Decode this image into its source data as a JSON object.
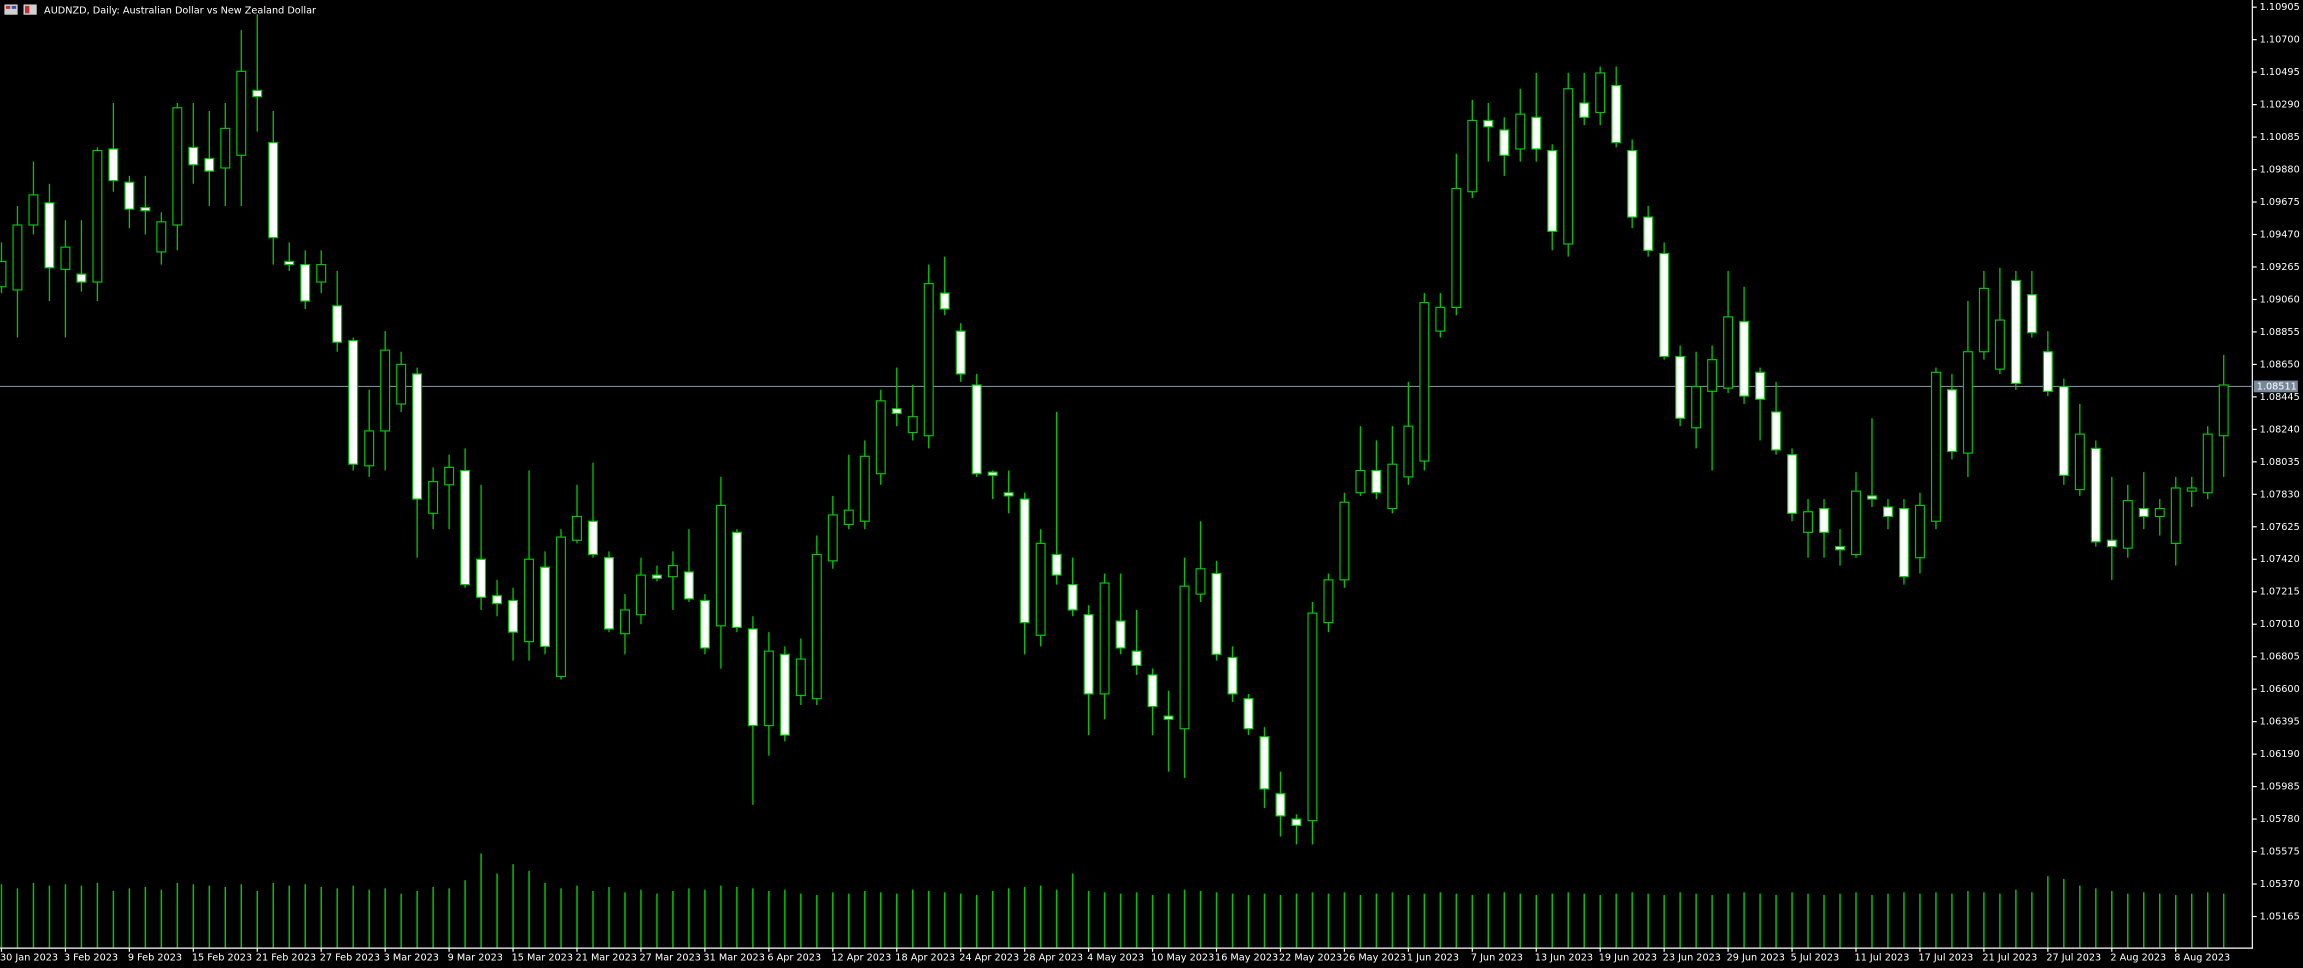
{
  "chart_data": {
    "type": "candlestick",
    "title": "AUDNZD, Daily:  Australian Dollar vs New Zealand Dollar",
    "categories": [
      "30 Jan 2023",
      null,
      null,
      null,
      "3 Feb 2023",
      null,
      null,
      null,
      "9 Feb 2023",
      null,
      null,
      null,
      "15 Feb 2023",
      null,
      null,
      null,
      "21 Feb 2023",
      null,
      null,
      null,
      "27 Feb 2023",
      null,
      null,
      null,
      "3 Mar 2023",
      null,
      null,
      null,
      "9 Mar 2023",
      null,
      null,
      null,
      "15 Mar 2023",
      null,
      null,
      null,
      "21 Mar 2023",
      null,
      null,
      null,
      "27 Mar 2023",
      null,
      null,
      null,
      "31 Mar 2023",
      null,
      null,
      null,
      "6 Apr 2023",
      null,
      null,
      null,
      "12 Apr 2023",
      null,
      null,
      null,
      "18 Apr 2023",
      null,
      null,
      null,
      "24 Apr 2023",
      null,
      null,
      null,
      "28 Apr 2023",
      null,
      null,
      null,
      "4 May 2023",
      null,
      null,
      null,
      "10 May 2023",
      null,
      null,
      null,
      "16 May 2023",
      null,
      null,
      null,
      "22 May 2023",
      null,
      null,
      null,
      "26 May 2023",
      null,
      null,
      null,
      "1 Jun 2023",
      null,
      null,
      null,
      "7 Jun 2023",
      null,
      null,
      null,
      "13 Jun 2023",
      null,
      null,
      null,
      "19 Jun 2023",
      null,
      null,
      null,
      "23 Jun 2023",
      null,
      null,
      null,
      "29 Jun 2023",
      null,
      null,
      null,
      "5 Jul 2023",
      null,
      null,
      null,
      "11 Jul 2023",
      null,
      null,
      null,
      "17 Jul 2023",
      null,
      null,
      null,
      "21 Jul 2023",
      null,
      null,
      null,
      "27 Jul 2023",
      null,
      null,
      null,
      "2 Aug 2023",
      null,
      null,
      null,
      "8 Aug 2023",
      null,
      null,
      null
    ],
    "open": [
      1.0914,
      1.0912,
      1.0953,
      1.0967,
      1.0925,
      1.0922,
      1.0917,
      1.1001,
      1.098,
      1.0964,
      1.0936,
      1.0953,
      1.1002,
      1.0995,
      1.0989,
      1.0997,
      1.1038,
      1.1005,
      1.093,
      1.0928,
      1.0917,
      1.0902,
      1.088,
      1.0801,
      1.0823,
      1.084,
      1.0859,
      1.0771,
      1.0789,
      1.0798,
      1.0742,
      1.0719,
      1.0716,
      1.069,
      1.0737,
      1.0668,
      1.0754,
      1.0766,
      1.0743,
      1.0695,
      1.0707,
      1.0732,
      1.0731,
      1.0734,
      1.0716,
      1.07,
      1.0759,
      1.0698,
      1.0637,
      1.0682,
      1.0656,
      1.0654,
      1.0741,
      1.0764,
      1.0766,
      1.0796,
      1.0837,
      1.0822,
      1.082,
      1.091,
      1.0886,
      1.0852,
      1.0797,
      1.0784,
      1.078,
      1.0694,
      1.0745,
      1.0726,
      1.0707,
      1.0657,
      1.0703,
      1.0684,
      1.0669,
      1.0643,
      1.0635,
      1.072,
      1.0733,
      1.068,
      1.0654,
      1.063,
      1.0594,
      1.0578,
      1.0577,
      1.0702,
      1.0729,
      1.0784,
      1.0798,
      1.0774,
      1.0794,
      1.0804,
      1.0886,
      1.0901,
      1.0974,
      1.1019,
      1.1013,
      1.1001,
      1.1021,
      1.1,
      1.0941,
      1.103,
      1.1024,
      1.1041,
      1.1,
      1.0958,
      1.0935,
      1.087,
      1.0825,
      1.0848,
      1.085,
      1.0892,
      1.086,
      1.0835,
      1.0808,
      1.0759,
      1.0774,
      1.075,
      1.0745,
      1.0782,
      1.0775,
      1.0774,
      1.0743,
      1.0766,
      1.0849,
      1.0809,
      1.0873,
      1.0862,
      1.0918,
      1.0909,
      1.0873,
      1.0851,
      1.0786,
      1.0812,
      1.0754,
      1.0749,
      1.0774,
      1.0769,
      1.0752,
      1.0785,
      1.0784,
      1.082
    ],
    "high": [
      1.0942,
      1.0965,
      1.0993,
      1.0979,
      1.0956,
      1.0956,
      1.1002,
      1.103,
      1.0984,
      1.0984,
      1.0961,
      1.103,
      1.103,
      1.1025,
      1.103,
      1.1076,
      1.1086,
      1.1025,
      1.0942,
      1.0937,
      1.0937,
      1.0924,
      1.0882,
      1.0849,
      1.0886,
      1.0873,
      1.0863,
      1.08,
      1.0808,
      1.0812,
      1.0789,
      1.0729,
      1.0724,
      1.0798,
      1.0747,
      1.0761,
      1.0789,
      1.0803,
      1.0747,
      1.072,
      1.0743,
      1.0738,
      1.0747,
      1.0761,
      1.072,
      1.0794,
      1.0761,
      1.0706,
      1.0696,
      1.0687,
      1.0692,
      1.0757,
      1.0782,
      1.0808,
      1.0817,
      1.0849,
      1.0863,
      1.0852,
      1.0928,
      1.0933,
      1.0891,
      1.0859,
      1.0798,
      1.0798,
      1.0784,
      1.0761,
      1.0835,
      1.0743,
      1.0713,
      1.0733,
      1.0733,
      1.071,
      1.0673,
      1.0659,
      1.0743,
      1.0766,
      1.0741,
      1.0687,
      1.0657,
      1.0636,
      1.0608,
      1.0581,
      1.0715,
      1.0733,
      1.0784,
      1.0826,
      1.0817,
      1.0826,
      1.0854,
      1.091,
      1.091,
      1.0998,
      1.1032,
      1.103,
      1.1021,
      1.1039,
      1.1049,
      1.1004,
      1.1049,
      1.1049,
      1.1053,
      1.1053,
      1.1007,
      1.0965,
      1.0942,
      1.0877,
      1.0873,
      1.0877,
      1.0924,
      1.0914,
      1.0863,
      1.0854,
      1.0812,
      1.078,
      1.078,
      1.0761,
      1.0797,
      1.0831,
      1.078,
      1.078,
      1.0784,
      1.0863,
      1.0859,
      1.0905,
      1.0924,
      1.0926,
      1.0924,
      1.0924,
      1.0886,
      1.0856,
      1.084,
      1.0817,
      1.0794,
      1.0789,
      1.0797,
      1.078,
      1.0794,
      1.0794,
      1.0826,
      1.0871
    ],
    "low": [
      1.091,
      1.0882,
      1.0947,
      1.0905,
      1.0882,
      1.0911,
      1.0905,
      1.0974,
      1.0951,
      1.0947,
      1.0928,
      1.0937,
      1.0979,
      1.0965,
      1.0965,
      1.0965,
      1.1012,
      1.0928,
      1.0924,
      1.09,
      1.091,
      1.0873,
      1.0798,
      1.0794,
      1.0798,
      1.0835,
      1.0743,
      1.0761,
      1.0761,
      1.0724,
      1.071,
      1.0706,
      1.0678,
      1.0678,
      1.0682,
      1.0666,
      1.0752,
      1.0743,
      1.0696,
      1.0682,
      1.0701,
      1.0728,
      1.071,
      1.0715,
      1.0682,
      1.0673,
      1.0696,
      1.0587,
      1.0618,
      1.0627,
      1.065,
      1.065,
      1.0736,
      1.0761,
      1.0761,
      1.0789,
      1.0826,
      1.0817,
      1.0812,
      1.0896,
      1.0854,
      1.0794,
      1.078,
      1.0771,
      1.0682,
      1.0687,
      1.0726,
      1.0706,
      1.0631,
      1.0641,
      1.0682,
      1.0669,
      1.0631,
      1.0608,
      1.0604,
      1.0715,
      1.0678,
      1.0652,
      1.0631,
      1.0585,
      1.0567,
      1.0562,
      1.0562,
      1.0696,
      1.0724,
      1.0782,
      1.078,
      1.0771,
      1.0789,
      1.0798,
      1.0882,
      1.0896,
      1.097,
      1.0993,
      1.0984,
      1.0993,
      1.0993,
      1.0937,
      1.0933,
      1.1016,
      1.1016,
      1.1002,
      1.0951,
      1.0933,
      1.0868,
      1.0826,
      1.0812,
      1.0798,
      1.0847,
      1.084,
      1.0817,
      1.0808,
      1.0766,
      1.0743,
      1.0743,
      1.0738,
      1.0743,
      1.0775,
      1.0761,
      1.0726,
      1.0733,
      1.0761,
      1.0805,
      1.0794,
      1.0868,
      1.0859,
      1.0849,
      1.0882,
      1.0845,
      1.0789,
      1.0782,
      1.075,
      1.0729,
      1.0743,
      1.0761,
      1.0757,
      1.0738,
      1.0775,
      1.078,
      1.0794
    ],
    "close": [
      1.093,
      1.0953,
      1.0972,
      1.0926,
      1.0939,
      1.0917,
      1.1,
      1.0981,
      1.0963,
      1.0962,
      1.0955,
      1.1027,
      1.0991,
      1.0987,
      1.1014,
      1.105,
      1.1034,
      1.0945,
      1.0928,
      1.0905,
      1.0928,
      1.0879,
      1.0802,
      1.0823,
      1.0874,
      1.0865,
      1.078,
      1.0791,
      1.08,
      1.0726,
      1.0718,
      1.0714,
      1.0696,
      1.0742,
      1.0687,
      1.0756,
      1.0769,
      1.0745,
      1.0698,
      1.071,
      1.0732,
      1.073,
      1.0738,
      1.0717,
      1.0686,
      1.0776,
      1.0699,
      1.0637,
      1.0684,
      1.0631,
      1.0679,
      1.0745,
      1.077,
      1.0773,
      1.0807,
      1.0842,
      1.0834,
      1.0832,
      1.0916,
      1.09,
      1.0859,
      1.0796,
      1.0795,
      1.0782,
      1.0702,
      1.0752,
      1.0732,
      1.071,
      1.0657,
      1.0727,
      1.0686,
      1.0675,
      1.0649,
      1.0641,
      1.0725,
      1.0736,
      1.0682,
      1.0657,
      1.0635,
      1.0597,
      1.058,
      1.0574,
      1.0708,
      1.0729,
      1.0778,
      1.0798,
      1.0784,
      1.0802,
      1.0826,
      1.0904,
      1.0901,
      1.0976,
      1.1019,
      1.1015,
      1.0997,
      1.1023,
      1.1001,
      1.0949,
      1.1039,
      1.1021,
      1.1049,
      1.1005,
      1.0958,
      1.0937,
      1.087,
      1.0831,
      1.0851,
      1.0868,
      1.0895,
      1.0845,
      1.0843,
      1.0811,
      1.0771,
      1.0772,
      1.0759,
      1.0748,
      1.0785,
      1.078,
      1.0769,
      1.0731,
      1.0776,
      1.086,
      1.081,
      1.0873,
      1.0913,
      1.0893,
      1.0853,
      1.0885,
      1.0848,
      1.0795,
      1.0821,
      1.0753,
      1.075,
      1.0779,
      1.0769,
      1.0774,
      1.0787,
      1.0787,
      1.0821,
      1.0852
    ],
    "volumes": [
      47,
      44,
      48,
      46,
      47,
      46,
      48,
      42,
      44,
      45,
      43,
      48,
      47,
      46,
      45,
      47,
      42,
      48,
      46,
      47,
      45,
      44,
      46,
      43,
      44,
      40,
      42,
      45,
      44,
      50,
      70,
      55,
      62,
      57,
      48,
      44,
      46,
      42,
      45,
      41,
      43,
      40,
      42,
      44,
      43,
      46,
      45,
      44,
      42,
      43,
      40,
      39,
      41,
      40,
      42,
      41,
      40,
      43,
      42,
      41,
      40,
      39,
      42,
      44,
      45,
      46,
      43,
      55,
      42,
      41,
      40,
      41,
      39,
      40,
      43,
      42,
      41,
      40,
      39,
      40,
      39,
      40,
      41,
      40,
      41,
      39,
      40,
      41,
      39,
      40,
      41,
      40,
      39,
      40,
      41,
      40,
      39,
      40,
      41,
      40,
      39,
      40,
      41,
      40,
      39,
      41,
      40,
      39,
      40,
      41,
      40,
      39,
      41,
      40,
      39,
      40,
      41,
      39,
      40,
      41,
      40,
      41,
      40,
      42,
      41,
      40,
      43,
      41,
      53,
      51,
      46,
      44,
      42,
      40,
      41,
      40,
      39,
      40,
      41,
      40
    ],
    "ylim": [
      1.0497,
      1.1095
    ],
    "yticks": [
      1.10905,
      {
        "value": 1.107,
        "label": "1.10700"
      },
      1.10495,
      {
        "value": 1.1029,
        "label": "1.10290"
      },
      1.10085,
      {
        "value": 1.0988,
        "label": "1.09880"
      },
      1.09675,
      {
        "value": 1.0947,
        "label": "1.09470"
      },
      1.09265,
      {
        "value": 1.0906,
        "label": "1.09060"
      },
      1.08855,
      {
        "value": 1.0865,
        "label": "1.08650"
      },
      1.08445,
      {
        "value": 1.0824,
        "label": "1.08240"
      },
      1.08035,
      {
        "value": 1.0783,
        "label": "1.07830"
      },
      1.07625,
      {
        "value": 1.0742,
        "label": "1.07420"
      },
      1.07215,
      {
        "value": 1.0701,
        "label": "1.07010"
      },
      1.06805,
      {
        "value": 1.066,
        "label": "1.06600"
      },
      1.06395,
      {
        "value": 1.0619,
        "label": "1.06190"
      },
      1.05985,
      {
        "value": 1.0578,
        "label": "1.05780"
      },
      1.05575,
      {
        "value": 1.0537,
        "label": "1.05370"
      },
      1.05165
    ],
    "current_price": 1.08511,
    "bull_color": "#000000",
    "bear_color": "#ffffff",
    "line_color": "#00c800",
    "volume_color": "#00c800",
    "current_price_color": "#778899",
    "grid": false
  }
}
